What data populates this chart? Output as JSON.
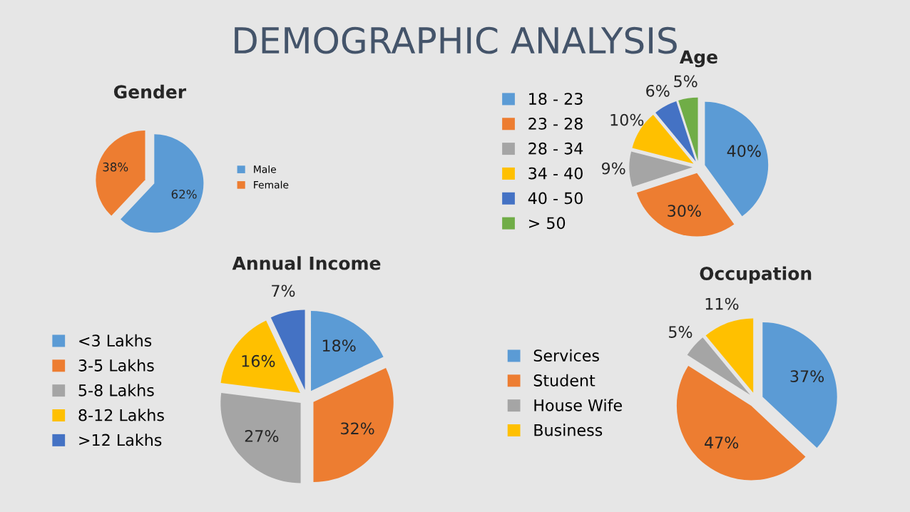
{
  "chart_data": [
    {
      "type": "pie",
      "title": "Gender",
      "annotations": [
        "DEMOGRAPHIC ANALYSIS"
      ],
      "categories": [
        "Male",
        "Female"
      ],
      "values": [
        62,
        38
      ],
      "colors": [
        "#5b9bd5",
        "#ed7d31"
      ],
      "value_labels": [
        "62%",
        "38%"
      ],
      "legend": "right"
    },
    {
      "type": "pie",
      "title": "Age",
      "categories": [
        "18 - 23",
        "23 - 28",
        "28 - 34",
        "34 - 40",
        "40 - 50",
        "> 50"
      ],
      "values": [
        40,
        30,
        9,
        10,
        6,
        5
      ],
      "colors": [
        "#5b9bd5",
        "#ed7d31",
        "#a5a5a5",
        "#ffc000",
        "#4472c4",
        "#70ad47"
      ],
      "value_labels": [
        "40%",
        "30%",
        "9%",
        "10%",
        "6%",
        "5%"
      ],
      "legend": "left"
    },
    {
      "type": "pie",
      "title": "Annual Income",
      "categories": [
        "<3 Lakhs",
        "3-5 Lakhs",
        "5-8 Lakhs",
        "8-12 Lakhs",
        ">12 Lakhs"
      ],
      "values": [
        18,
        32,
        27,
        16,
        7
      ],
      "colors": [
        "#5b9bd5",
        "#ed7d31",
        "#a5a5a5",
        "#ffc000",
        "#4472c4"
      ],
      "value_labels": [
        "18%",
        "32%",
        "27%",
        "16%",
        "7%"
      ],
      "legend": "left"
    },
    {
      "type": "pie",
      "title": "Occupation",
      "categories": [
        "Services",
        "Student",
        "House Wife",
        "Business"
      ],
      "values": [
        37,
        47,
        5,
        11
      ],
      "colors": [
        "#5b9bd5",
        "#ed7d31",
        "#a5a5a5",
        "#ffc000"
      ],
      "value_labels": [
        "37%",
        "47%",
        "5%",
        "11%"
      ],
      "legend": "left"
    }
  ]
}
